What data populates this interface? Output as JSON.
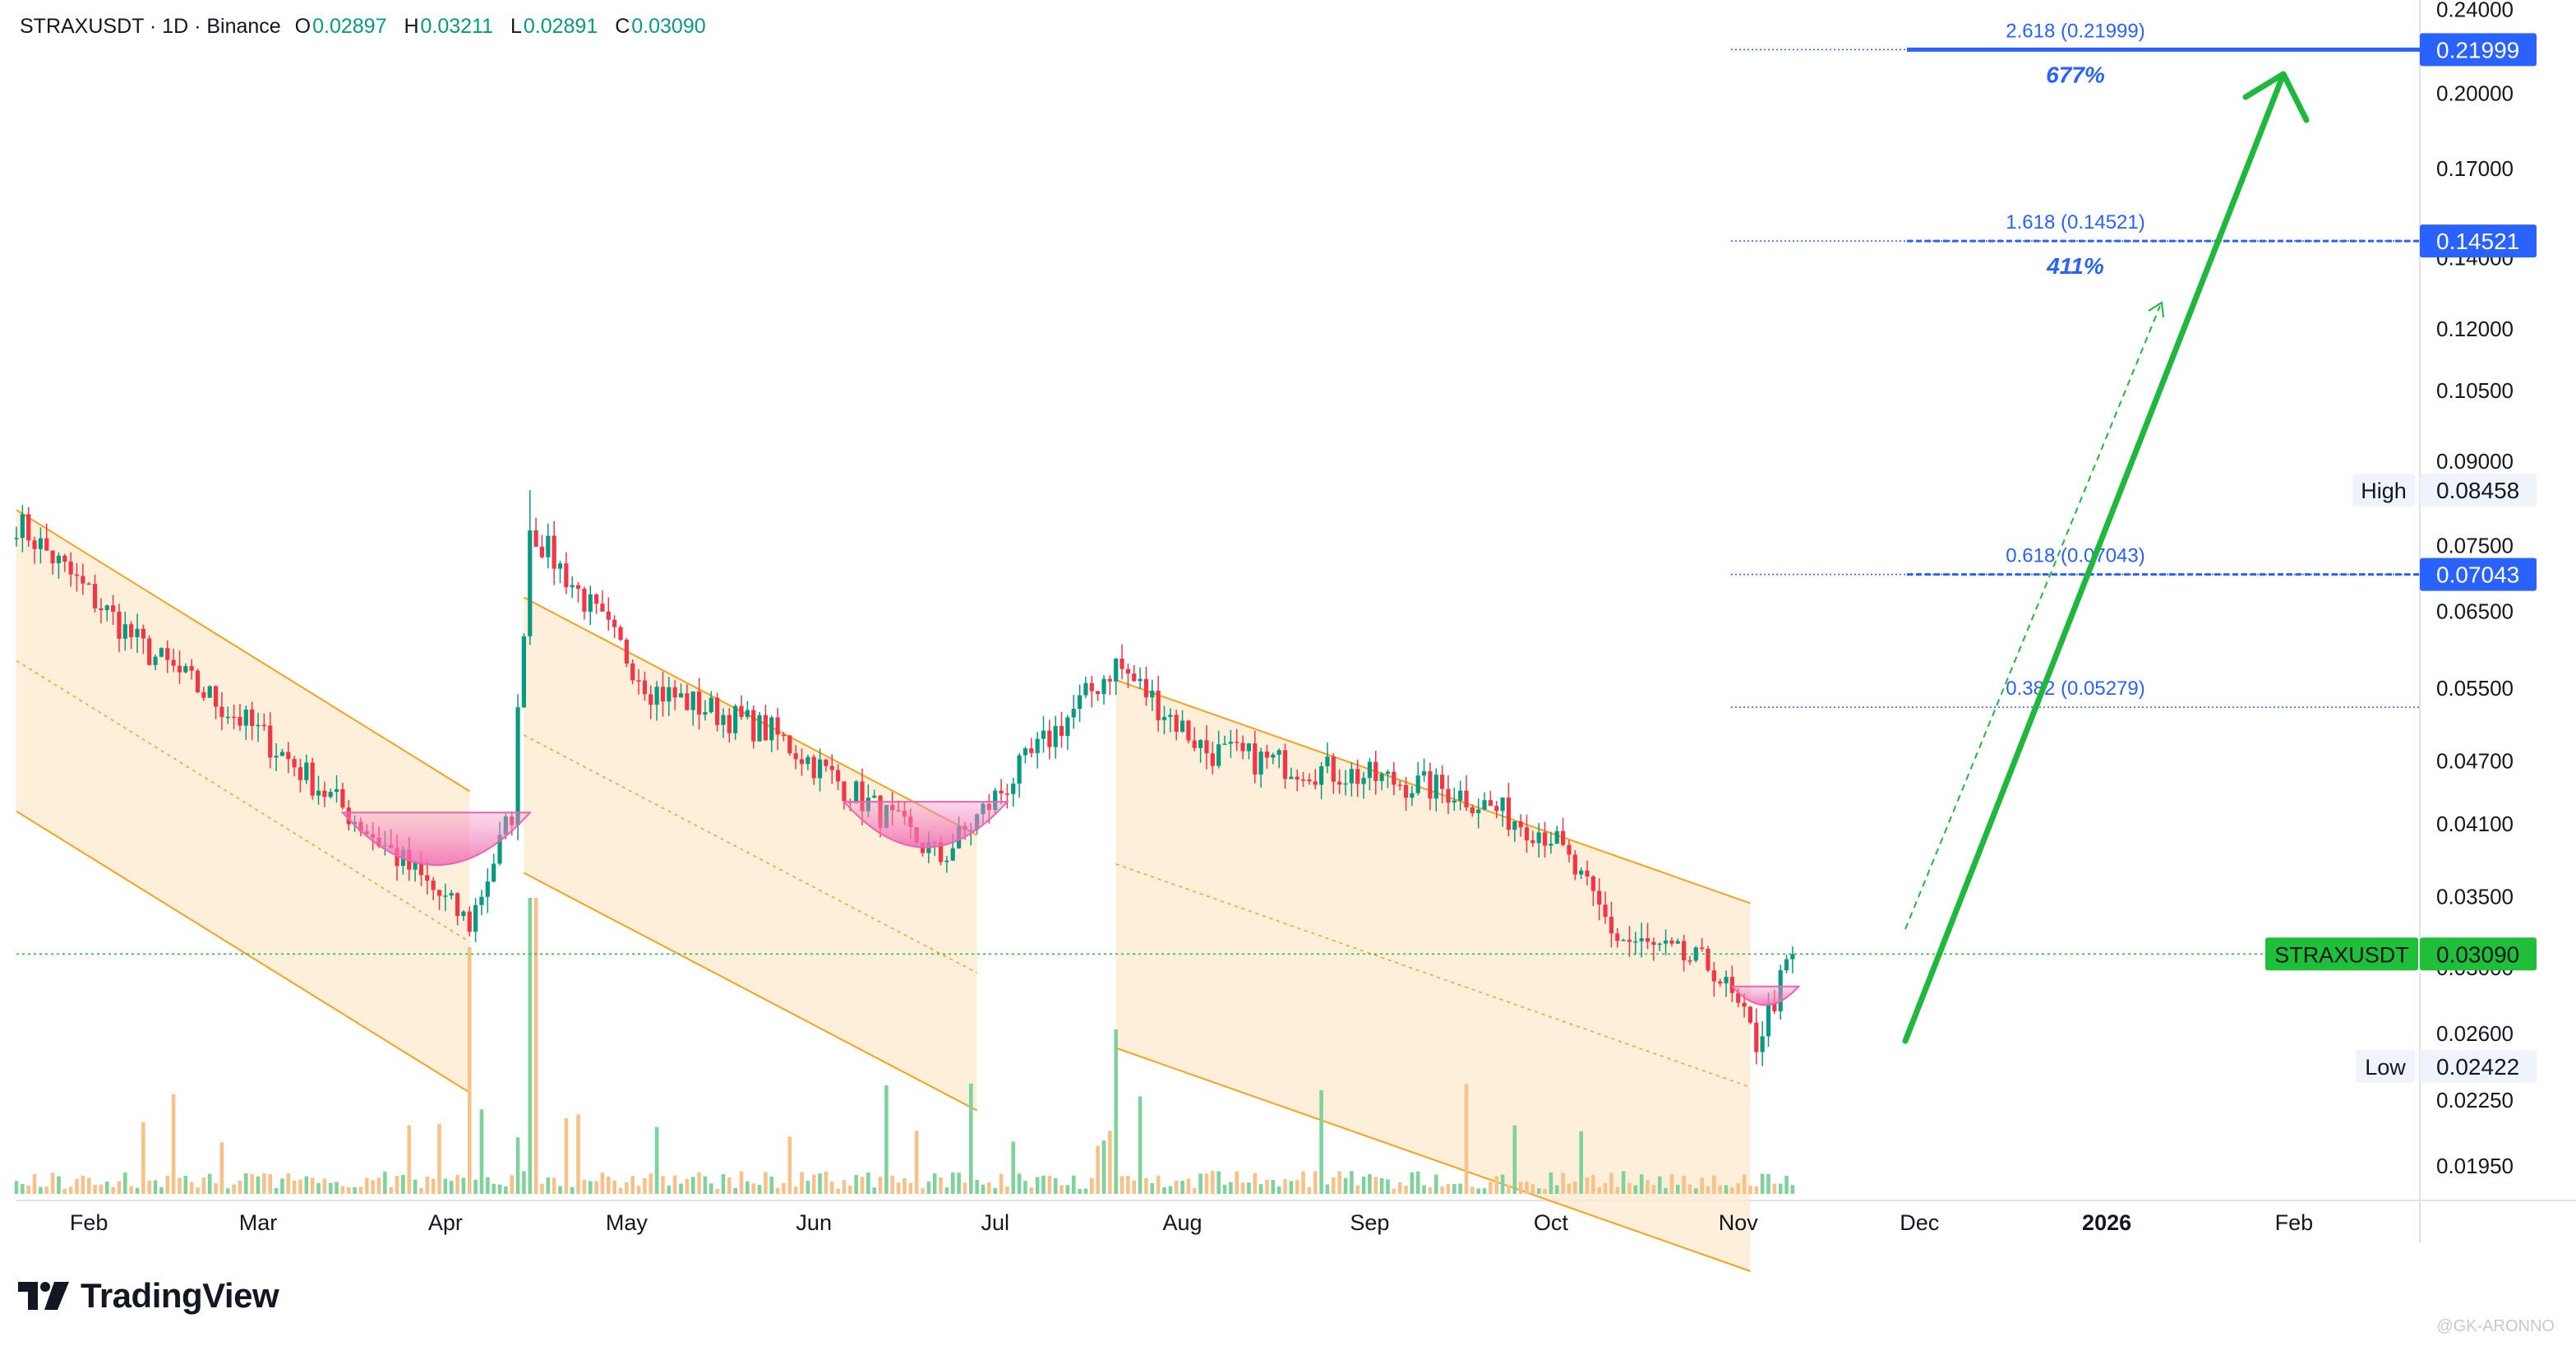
{
  "header": {
    "symbol": "STRAXUSDT · 1D · Binance",
    "open_label": "O",
    "open": "0.02897",
    "high_label": "H",
    "high": "0.03211",
    "low_label": "L",
    "low": "0.02891",
    "close_label": "C",
    "close": "0.03090"
  },
  "brand": {
    "name": "TradingView"
  },
  "watermark": "@GK-ARONNO",
  "colors": {
    "up": "#089981",
    "down": "#f23645",
    "fib": "#2962ff",
    "arrow": "#1fb83c",
    "channel": "#f7a21b",
    "channel_fill": "#fde9cf",
    "bowl": "#f48fc5",
    "price_line": "#1fbf3a",
    "volume_up": "#7fd39a",
    "volume_down": "#f6c28a"
  },
  "chart_data": {
    "type": "candlestick",
    "symbol": "STRAXUSDT",
    "interval": "1D",
    "exchange": "Binance",
    "scale": "log",
    "y_range": [
      0.0181,
      0.245
    ],
    "x_months": [
      "Feb",
      "Mar",
      "Apr",
      "May",
      "Jun",
      "Jul",
      "Aug",
      "Sep",
      "Oct",
      "Nov",
      "Dec",
      "2026",
      "Feb"
    ],
    "y_ticks": [
      "0.24000",
      "0.20000",
      "0.17000",
      "0.14000",
      "0.12000",
      "0.10500",
      "0.09000",
      "0.07500",
      "0.06500",
      "0.05500",
      "0.04700",
      "0.04100",
      "0.03500",
      "0.03000",
      "0.02600",
      "0.02250",
      "0.01950"
    ],
    "last_price": {
      "label": "STRAXUSDT",
      "value": "0.03090"
    },
    "high_marker": {
      "label": "High",
      "value": "0.08458"
    },
    "low_marker": {
      "label": "Low",
      "value": "0.02422"
    },
    "fib_levels": [
      {
        "ratio": "2.618",
        "value": "0.21999",
        "text": "2.618 (0.21999)",
        "badge": "0.21999",
        "pct": "677%"
      },
      {
        "ratio": "1.618",
        "value": "0.14521",
        "text": "1.618 (0.14521)",
        "badge": "0.14521",
        "pct": "411%"
      },
      {
        "ratio": "0.618",
        "value": "0.07043",
        "text": "0.618 (0.07043)",
        "badge": "0.07043",
        "pct": ""
      },
      {
        "ratio": "0.382",
        "value": "0.05279",
        "text": "0.382 (0.05279)",
        "badge": "",
        "pct": ""
      }
    ],
    "anchors": [
      {
        "month": "2025-01-20",
        "price": 0.079
      },
      {
        "month": "2025-02-10",
        "price": 0.06
      },
      {
        "month": "2025-03-01",
        "price": 0.05
      },
      {
        "month": "2025-03-20",
        "price": 0.04
      },
      {
        "month": "2025-04-05",
        "price": 0.033
      },
      {
        "month": "2025-04-12",
        "price": 0.042
      },
      {
        "month": "2025-04-15",
        "price": 0.078
      },
      {
        "month": "2025-05-05",
        "price": 0.055
      },
      {
        "month": "2025-05-25",
        "price": 0.05
      },
      {
        "month": "2025-06-12",
        "price": 0.042
      },
      {
        "month": "2025-06-22",
        "price": 0.038
      },
      {
        "month": "2025-07-05",
        "price": 0.046
      },
      {
        "month": "2025-07-21",
        "price": 0.058
      },
      {
        "month": "2025-08-05",
        "price": 0.048
      },
      {
        "month": "2025-08-25",
        "price": 0.046
      },
      {
        "month": "2025-09-15",
        "price": 0.044
      },
      {
        "month": "2025-10-01",
        "price": 0.04
      },
      {
        "month": "2025-10-12",
        "price": 0.032
      },
      {
        "month": "2025-10-28",
        "price": 0.03
      },
      {
        "month": "2025-11-04",
        "price": 0.0255
      },
      {
        "month": "2025-11-10",
        "price": 0.0309
      }
    ]
  }
}
